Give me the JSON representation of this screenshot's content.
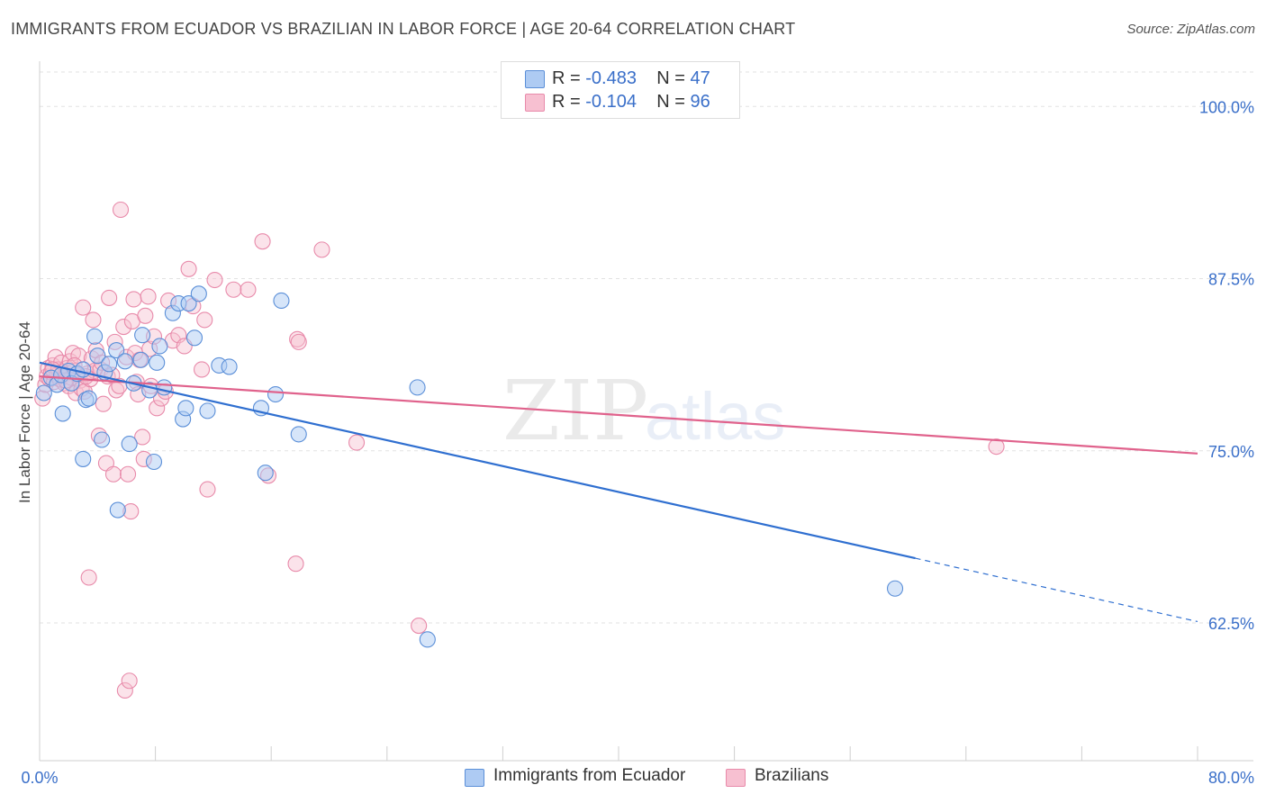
{
  "title": "IMMIGRANTS FROM ECUADOR VS BRAZILIAN IN LABOR FORCE | AGE 20-64 CORRELATION CHART",
  "source": "Source: ZipAtlas.com",
  "watermark": {
    "zip": "ZIP",
    "atlas": "atlas"
  },
  "legend": {
    "series1": {
      "r_label": "R =",
      "r_value": "-0.483",
      "n_label": "N =",
      "n_value": "47"
    },
    "series2": {
      "r_label": "R =",
      "r_value": "-0.104",
      "n_label": "N =",
      "n_value": "96"
    }
  },
  "colors": {
    "ecuador_fill": "#aecbf3",
    "ecuador_stroke": "#5b8fd8",
    "ecuador_line": "#2f6fd0",
    "brazil_fill": "#f7c0d1",
    "brazil_stroke": "#e88aaa",
    "brazil_line": "#e0628c",
    "tick_text": "#3a6fc9"
  },
  "chart_data": {
    "type": "scatter",
    "title": "IMMIGRANTS FROM ECUADOR VS BRAZILIAN IN LABOR FORCE | AGE 20-64 CORRELATION CHART",
    "xlabel": "",
    "ylabel": "In Labor Force | Age 20-64",
    "xlim": [
      0,
      80
    ],
    "ylim": [
      52.5,
      102.5
    ],
    "x_tick_labels": [
      "0.0%",
      "80.0%"
    ],
    "y_ticks": [
      62.5,
      75.0,
      87.5,
      100.0
    ],
    "y_tick_labels": [
      "62.5%",
      "75.0%",
      "87.5%",
      "100.0%"
    ],
    "series": [
      {
        "name": "Immigrants from Ecuador",
        "r": -0.483,
        "n": 47,
        "trend": {
          "x0": 0,
          "y0": 81.4,
          "x1": 60.5,
          "y1": 67.2,
          "dash_x1": 80,
          "dash_y1": 62.6
        },
        "points": [
          [
            0.3,
            79.2
          ],
          [
            0.8,
            80.3
          ],
          [
            1.2,
            79.8
          ],
          [
            1.5,
            80.5
          ],
          [
            1.6,
            77.7
          ],
          [
            2.0,
            80.8
          ],
          [
            2.2,
            79.9
          ],
          [
            2.6,
            80.6
          ],
          [
            3.0,
            80.9
          ],
          [
            3.0,
            74.4
          ],
          [
            3.2,
            78.7
          ],
          [
            3.4,
            78.8
          ],
          [
            3.8,
            83.3
          ],
          [
            4.0,
            81.9
          ],
          [
            4.3,
            75.8
          ],
          [
            4.5,
            80.7
          ],
          [
            4.8,
            81.3
          ],
          [
            5.3,
            82.3
          ],
          [
            5.4,
            70.7
          ],
          [
            5.9,
            81.5
          ],
          [
            6.2,
            75.5
          ],
          [
            6.5,
            79.9
          ],
          [
            7.0,
            81.6
          ],
          [
            7.1,
            83.4
          ],
          [
            7.6,
            79.4
          ],
          [
            7.9,
            74.2
          ],
          [
            8.1,
            81.4
          ],
          [
            8.3,
            82.6
          ],
          [
            8.6,
            79.6
          ],
          [
            9.2,
            85.0
          ],
          [
            9.6,
            85.7
          ],
          [
            9.9,
            77.3
          ],
          [
            10.1,
            78.1
          ],
          [
            10.3,
            85.7
          ],
          [
            10.7,
            83.2
          ],
          [
            11.0,
            86.4
          ],
          [
            11.6,
            77.9
          ],
          [
            12.4,
            81.2
          ],
          [
            13.1,
            81.1
          ],
          [
            15.3,
            78.1
          ],
          [
            15.6,
            73.4
          ],
          [
            16.3,
            79.1
          ],
          [
            16.7,
            85.9
          ],
          [
            17.9,
            76.2
          ],
          [
            26.1,
            79.6
          ],
          [
            59.1,
            65.0
          ],
          [
            26.8,
            61.3
          ]
        ]
      },
      {
        "name": "Brazilians",
        "r": -0.104,
        "n": 96,
        "trend": {
          "x0": 0,
          "y0": 80.4,
          "x1": 80,
          "y1": 74.8
        },
        "points": [
          [
            0.2,
            78.8
          ],
          [
            0.4,
            79.8
          ],
          [
            0.5,
            80.4
          ],
          [
            0.6,
            81.0
          ],
          [
            0.7,
            80.2
          ],
          [
            0.8,
            80.7
          ],
          [
            0.9,
            81.2
          ],
          [
            1.0,
            80.0
          ],
          [
            1.1,
            81.8
          ],
          [
            1.2,
            80.5
          ],
          [
            1.3,
            80.9
          ],
          [
            1.4,
            80.2
          ],
          [
            1.5,
            81.4
          ],
          [
            1.6,
            80.7
          ],
          [
            1.7,
            79.9
          ],
          [
            1.8,
            80.6
          ],
          [
            1.9,
            81.0
          ],
          [
            2.0,
            79.7
          ],
          [
            2.1,
            81.5
          ],
          [
            2.2,
            80.3
          ],
          [
            2.3,
            82.1
          ],
          [
            2.4,
            80.8
          ],
          [
            2.5,
            79.2
          ],
          [
            2.6,
            80.5
          ],
          [
            2.7,
            81.9
          ],
          [
            2.8,
            80.1
          ],
          [
            2.9,
            79.5
          ],
          [
            3.0,
            85.4
          ],
          [
            3.1,
            79.3
          ],
          [
            3.3,
            80.6
          ],
          [
            3.4,
            65.8
          ],
          [
            3.5,
            80.2
          ],
          [
            3.6,
            81.7
          ],
          [
            3.7,
            84.5
          ],
          [
            3.8,
            80.8
          ],
          [
            3.9,
            82.3
          ],
          [
            4.1,
            76.1
          ],
          [
            4.2,
            80.9
          ],
          [
            4.3,
            81.4
          ],
          [
            4.4,
            78.4
          ],
          [
            4.6,
            74.1
          ],
          [
            4.7,
            80.4
          ],
          [
            4.8,
            86.1
          ],
          [
            5.0,
            80.5
          ],
          [
            5.1,
            73.3
          ],
          [
            5.2,
            82.9
          ],
          [
            5.3,
            79.4
          ],
          [
            5.5,
            79.7
          ],
          [
            5.6,
            92.5
          ],
          [
            5.8,
            84.0
          ],
          [
            5.9,
            57.6
          ],
          [
            6.0,
            81.8
          ],
          [
            6.1,
            73.3
          ],
          [
            6.2,
            58.3
          ],
          [
            6.3,
            70.6
          ],
          [
            6.4,
            84.4
          ],
          [
            6.5,
            86.0
          ],
          [
            6.6,
            82.1
          ],
          [
            6.7,
            80.0
          ],
          [
            6.8,
            79.1
          ],
          [
            6.9,
            81.6
          ],
          [
            7.1,
            76.0
          ],
          [
            7.2,
            74.4
          ],
          [
            7.3,
            84.8
          ],
          [
            7.5,
            86.2
          ],
          [
            7.6,
            82.4
          ],
          [
            7.7,
            79.7
          ],
          [
            7.9,
            83.3
          ],
          [
            8.1,
            78.1
          ],
          [
            8.4,
            78.8
          ],
          [
            8.7,
            79.3
          ],
          [
            8.9,
            85.9
          ],
          [
            9.2,
            83.0
          ],
          [
            9.6,
            83.4
          ],
          [
            10.0,
            82.6
          ],
          [
            10.3,
            88.2
          ],
          [
            10.6,
            85.5
          ],
          [
            11.2,
            80.9
          ],
          [
            11.4,
            84.5
          ],
          [
            11.6,
            72.2
          ],
          [
            12.1,
            87.4
          ],
          [
            13.4,
            86.7
          ],
          [
            14.4,
            86.7
          ],
          [
            15.4,
            90.2
          ],
          [
            15.8,
            73.2
          ],
          [
            17.7,
            66.8
          ],
          [
            17.8,
            83.1
          ],
          [
            17.9,
            82.9
          ],
          [
            19.5,
            89.6
          ],
          [
            21.9,
            75.6
          ],
          [
            26.2,
            62.3
          ],
          [
            66.1,
            75.3
          ],
          [
            0.9,
            80.9
          ],
          [
            1.8,
            80.1
          ],
          [
            2.4,
            81.2
          ],
          [
            3.2,
            80.4
          ]
        ]
      }
    ],
    "grid": true,
    "legend_position": "top-center"
  },
  "bottom_legend": {
    "item1": "Immigrants from Ecuador",
    "item2": "Brazilians"
  }
}
